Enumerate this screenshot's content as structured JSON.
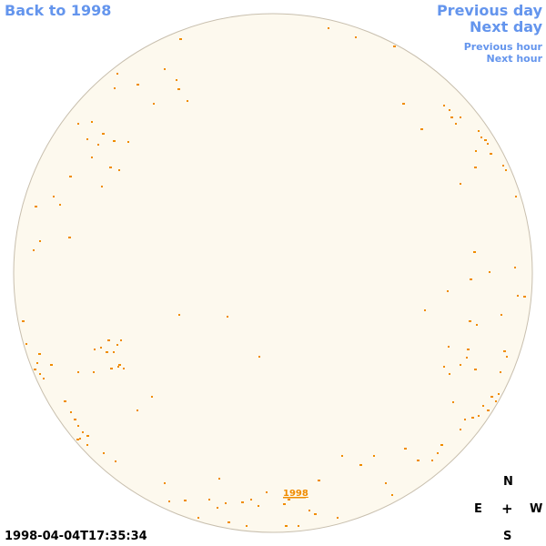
{
  "nav": {
    "back_label": "Back to 1998",
    "previous_day_label": "Previous day",
    "next_day_label": "Next day",
    "previous_hour_label": "Previous hour",
    "next_hour_label": "Next hour"
  },
  "sun": {
    "disk_fill": "#fdf9ee",
    "disk_stroke": "#c8bfae",
    "region_color": "#f08c00",
    "label": "1998"
  },
  "compass": {
    "north": "N",
    "east": "E",
    "center": "+",
    "west": "W",
    "south": "S"
  },
  "timestamp": "1998-04-04T17:35:34",
  "colors": {
    "link": "#6495ed",
    "text": "#000000"
  }
}
